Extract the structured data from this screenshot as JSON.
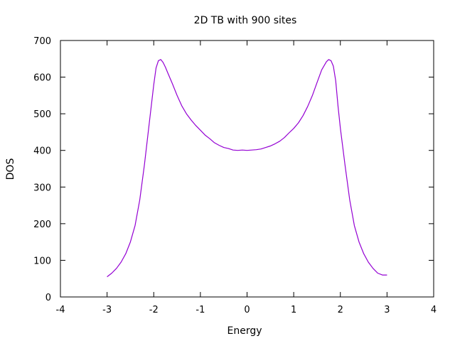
{
  "chart_data": {
    "type": "line",
    "title": "2D TB with 900 sites",
    "xlabel": "Energy",
    "ylabel": "DOS",
    "xlim": [
      -4,
      4
    ],
    "ylim": [
      0,
      700
    ],
    "xticks": [
      -4,
      -3,
      -2,
      -1,
      0,
      1,
      2,
      3,
      4
    ],
    "yticks": [
      0,
      100,
      200,
      300,
      400,
      500,
      600,
      700
    ],
    "grid": false,
    "legend": "none",
    "series": [
      {
        "color": "#9400d3",
        "x": [
          -3.0,
          -2.9,
          -2.8,
          -2.7,
          -2.6,
          -2.5,
          -2.4,
          -2.3,
          -2.2,
          -2.1,
          -2.0,
          -1.95,
          -1.9,
          -1.85,
          -1.8,
          -1.75,
          -1.7,
          -1.6,
          -1.5,
          -1.4,
          -1.3,
          -1.2,
          -1.1,
          -1.0,
          -0.9,
          -0.8,
          -0.7,
          -0.6,
          -0.5,
          -0.4,
          -0.3,
          -0.2,
          -0.1,
          0.0,
          0.1,
          0.2,
          0.3,
          0.4,
          0.5,
          0.6,
          0.7,
          0.8,
          0.9,
          1.0,
          1.1,
          1.2,
          1.3,
          1.4,
          1.5,
          1.6,
          1.7,
          1.75,
          1.8,
          1.85,
          1.9,
          1.95,
          2.0,
          2.1,
          2.2,
          2.3,
          2.4,
          2.5,
          2.6,
          2.7,
          2.8,
          2.9,
          3.0
        ],
        "y": [
          55,
          65,
          78,
          95,
          118,
          150,
          195,
          265,
          360,
          470,
          580,
          625,
          645,
          648,
          640,
          627,
          612,
          582,
          550,
          522,
          500,
          483,
          468,
          455,
          442,
          432,
          421,
          414,
          408,
          405,
          401,
          400,
          401,
          400,
          401,
          402,
          404,
          408,
          412,
          418,
          425,
          435,
          448,
          460,
          475,
          495,
          520,
          550,
          585,
          620,
          642,
          648,
          645,
          630,
          590,
          520,
          460,
          360,
          265,
          195,
          150,
          118,
          95,
          78,
          65,
          60,
          60
        ]
      }
    ]
  }
}
